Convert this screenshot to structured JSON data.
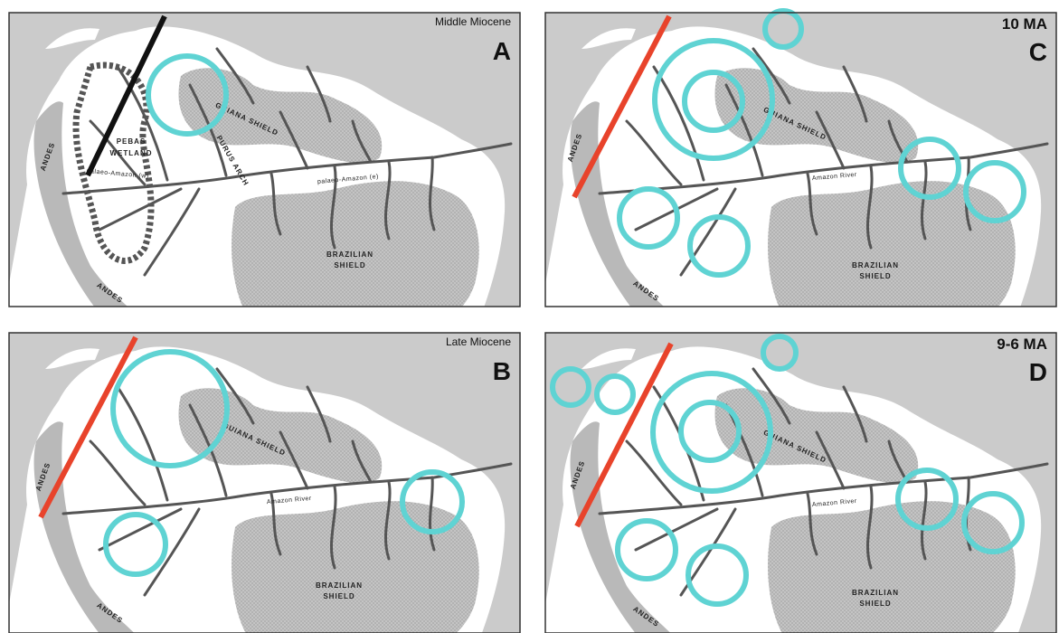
{
  "panels": [
    {
      "letter": "A",
      "period": "Middle Miocene",
      "labels": [
        "ANDES",
        "PEBAS",
        "WETLAND",
        "palaeo-Amazon (w)",
        "GUIANA SHIELD",
        "PURUS ARCH",
        "palaeo-Amazon (e)",
        "BRAZILIAN",
        "SHIELD",
        "ANDES"
      ]
    },
    {
      "letter": "C",
      "period": "10 MA",
      "labels": [
        "ANDES",
        "GUIANA SHIELD",
        "Amazon River",
        "BRAZILIAN",
        "SHIELD",
        "ANDES"
      ]
    },
    {
      "letter": "B",
      "period": "Late Miocene",
      "labels": [
        "ANDES",
        "GUIANA SHIELD",
        "Amazon River",
        "BRAZILIAN",
        "SHIELD",
        "ANDES"
      ]
    },
    {
      "letter": "D",
      "period": "9-6 MA",
      "labels": [
        "ANDES",
        "GUIANA SHIELD",
        "Amazon River",
        "BRAZILIAN",
        "SHIELD",
        "ANDES"
      ]
    }
  ]
}
